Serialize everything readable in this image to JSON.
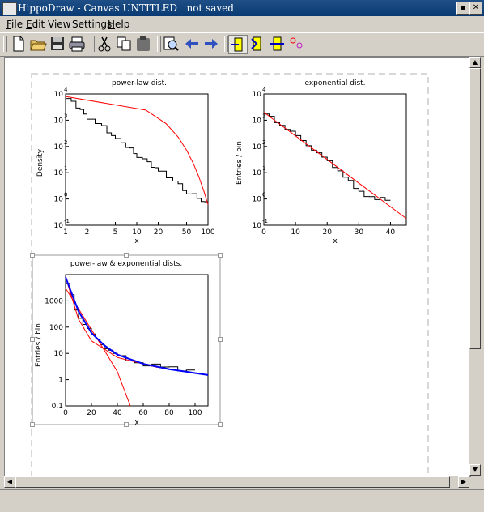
{
  "window": {
    "title": "HippoDraw - Canvas UNTITLED   not saved",
    "buttons": [
      "▪",
      "✕"
    ]
  },
  "menubar": {
    "items": [
      {
        "label": "File",
        "mnemonic_index": 0
      },
      {
        "label": "Edit",
        "mnemonic_index": 0
      },
      {
        "label": "View",
        "mnemonic_index": -1
      },
      {
        "label": "Settings",
        "mnemonic_index": -1
      },
      {
        "label": "Help",
        "mnemonic_index": 0
      }
    ]
  },
  "toolbar": {
    "icons": [
      "new-file-icon",
      "open-folder-icon",
      "save-icon",
      "print-icon",
      "cut-icon",
      "copy-icon",
      "paste-icon",
      "zoom-icon",
      "back-arrow-icon",
      "forward-arrow-icon",
      "align-left-icon",
      "align-center-icon",
      "align-right-icon",
      "pick-points-icon"
    ]
  },
  "colors": {
    "data_histogram": "#000000",
    "fit_function": "#ff0000",
    "fit_total": "#0000ff",
    "selection": "#999999",
    "page_border": "#cccccc"
  },
  "chart_data": [
    {
      "type": "line",
      "title": "power-law dist.",
      "xlabel": "x",
      "ylabel": "Density",
      "xscale": "log",
      "yscale": "log",
      "xlim": [
        1,
        100
      ],
      "ylim": [
        0.1,
        10000
      ],
      "xticks": [
        "1",
        "2",
        "5",
        "10",
        "20",
        "50",
        "100"
      ],
      "yticks": [
        "10",
        "10",
        "10",
        "10",
        "10",
        "10"
      ],
      "ytick_exponents": [
        "-1",
        "0",
        "1",
        "2",
        "3",
        "4"
      ],
      "series": [
        {
          "values_x": [
            1,
            2,
            5,
            10,
            20,
            50,
            100
          ],
          "values_y": [
            8000,
            1400,
            210,
            50,
            12,
            2.0,
            0.6
          ],
          "style": "histogram"
        },
        {
          "values_x": [
            1,
            100
          ],
          "values_y": [
            8000,
            0.6
          ],
          "style": "fit"
        }
      ]
    },
    {
      "type": "line",
      "title": "exponential dist.",
      "xlabel": "x",
      "ylabel": "Entries / bin",
      "yscale": "log",
      "xlim": [
        0,
        45
      ],
      "ylim": [
        0.1,
        10000
      ],
      "xticks": [
        "0",
        "10",
        "20",
        "30",
        "40"
      ],
      "yticks": [
        "10",
        "10",
        "10",
        "10",
        "10",
        "10"
      ],
      "ytick_exponents": [
        "-1",
        "0",
        "1",
        "2",
        "3",
        "4"
      ],
      "series": [
        {
          "values_x": [
            0,
            5,
            10,
            15,
            20,
            25,
            30,
            35,
            40
          ],
          "values_y": [
            2000,
            800,
            280,
            100,
            30,
            10,
            2,
            1,
            1
          ],
          "style": "histogram"
        },
        {
          "values_x": [
            0,
            45
          ],
          "values_y": [
            2000,
            0.18
          ],
          "style": "fit"
        }
      ]
    },
    {
      "type": "line",
      "title": "power-law & exponential dists.",
      "xlabel": "x",
      "ylabel": "Entries / bin",
      "yscale": "log",
      "xlim": [
        0,
        110
      ],
      "ylim": [
        0.1,
        10000
      ],
      "xticks": [
        "0",
        "20",
        "40",
        "60",
        "80",
        "100"
      ],
      "yticks": [
        "0.1",
        "1",
        "10",
        "100",
        "1000"
      ],
      "series": [
        {
          "values_x": [
            0,
            10,
            20,
            30,
            40,
            60,
            80,
            100
          ],
          "values_y": [
            8000,
            300,
            60,
            20,
            8,
            4,
            3,
            2
          ],
          "style": "histogram"
        },
        {
          "values_x": [
            0,
            10,
            20,
            30,
            40,
            60,
            80,
            110
          ],
          "values_y": [
            8000,
            400,
            60,
            20,
            9,
            4,
            2.5,
            1.5
          ],
          "style": "fit_total"
        },
        {
          "values_x": [
            0,
            10,
            20,
            30,
            40,
            50
          ],
          "values_y": [
            3000,
            500,
            80,
            13,
            2,
            0.1
          ],
          "style": "fit_exp"
        },
        {
          "values_x": [
            0,
            10,
            20,
            40,
            70,
            110
          ],
          "values_y": [
            8000,
            200,
            30,
            7,
            3,
            1.5
          ],
          "style": "fit_pow"
        }
      ]
    }
  ]
}
